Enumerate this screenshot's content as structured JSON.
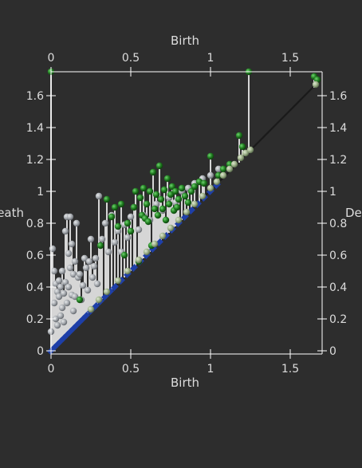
{
  "chart_data": {
    "type": "scatter",
    "title": "",
    "xlabel": "Birth",
    "ylabel": "Death",
    "xlim": [
      0,
      1.7
    ],
    "ylim": [
      -0.02,
      1.75
    ],
    "x_ticks": [
      0,
      0.5,
      1,
      1.5
    ],
    "x_tick_labels": [
      "0",
      "0.5",
      "1",
      "1.5"
    ],
    "y_ticks": [
      0,
      0.2,
      0.4,
      0.6,
      0.8,
      1,
      1.2,
      1.4,
      1.6
    ],
    "y_tick_labels": [
      "0",
      "0.2",
      "0.4",
      "0.6",
      "0.8",
      "1",
      "1.2",
      "1.4",
      "1.6"
    ],
    "grid": false,
    "legend": "none",
    "colors": {
      "background": "#2d2d2d",
      "axes": "#ffffff",
      "text": "#dcdcdc",
      "diagonal": "#1a1a1a",
      "stem": "#d6d6d6",
      "series_grey": "#a4a8ad",
      "series_green": "#1f7a1f",
      "series_light_green": "#9aae86",
      "series_blue": "#1e3fa8"
    },
    "series": [
      {
        "marker": "grey-sphere",
        "x": [
          0,
          0.01,
          0.02,
          0.02,
          0.03,
          0.03,
          0.04,
          0.04,
          0.05,
          0.05,
          0.06,
          0.06,
          0.07,
          0.07,
          0.08,
          0.08,
          0.09,
          0.09,
          0.1,
          0.1,
          0.11,
          0.11,
          0.12,
          0.12,
          0.13,
          0.13,
          0.14,
          0.14,
          0.15,
          0.15,
          0.16,
          0.17,
          0.18,
          0.19,
          0.2,
          0.21,
          0.22,
          0.23,
          0.24,
          0.25,
          0.26,
          0.27,
          0.28,
          0.29,
          0.3,
          0.32,
          0.34,
          0.36,
          0.38,
          0.4,
          0.42,
          0.44,
          0.46,
          0.48,
          0.5,
          0.52,
          0.55,
          0.58,
          0.62,
          0.66,
          0.7,
          0.74,
          0.78,
          0.82,
          0.86,
          0.9,
          0.95,
          1.0,
          1.05
        ],
        "y": [
          0.12,
          0.64,
          0.5,
          0.3,
          0.42,
          0.2,
          0.37,
          0.16,
          0.44,
          0.34,
          0.4,
          0.22,
          0.27,
          0.5,
          0.36,
          0.18,
          0.75,
          0.43,
          0.84,
          0.3,
          0.61,
          0.4,
          0.84,
          0.52,
          0.67,
          0.35,
          0.48,
          0.25,
          0.56,
          0.34,
          0.8,
          0.46,
          0.48,
          0.32,
          0.41,
          0.58,
          0.52,
          0.38,
          0.56,
          0.7,
          0.46,
          0.53,
          0.58,
          0.42,
          0.97,
          0.7,
          0.8,
          0.62,
          0.85,
          0.68,
          0.75,
          0.62,
          0.79,
          0.71,
          0.84,
          0.9,
          0.76,
          0.85,
          0.82,
          0.92,
          0.88,
          0.96,
          0.93,
          1.0,
          1.02,
          1.05,
          1.08,
          1.1,
          1.14
        ]
      },
      {
        "marker": "green-sphere",
        "x": [
          0.0,
          0.18,
          0.31,
          0.35,
          0.38,
          0.4,
          0.42,
          0.44,
          0.46,
          0.48,
          0.5,
          0.52,
          0.53,
          0.55,
          0.56,
          0.57,
          0.58,
          0.59,
          0.6,
          0.61,
          0.62,
          0.63,
          0.64,
          0.65,
          0.66,
          0.67,
          0.68,
          0.69,
          0.7,
          0.71,
          0.72,
          0.73,
          0.74,
          0.75,
          0.76,
          0.77,
          0.78,
          0.79,
          0.8,
          0.82,
          0.84,
          0.86,
          0.88,
          0.9,
          0.93,
          0.96,
          1.0,
          1.05,
          1.08,
          1.12,
          1.18,
          1.2,
          1.24,
          1.65,
          1.67
        ],
        "y": [
          1.75,
          0.32,
          0.66,
          0.95,
          0.84,
          0.9,
          0.78,
          0.92,
          0.6,
          0.8,
          0.75,
          0.9,
          1.0,
          0.56,
          0.96,
          0.85,
          1.02,
          0.83,
          0.92,
          0.81,
          1.0,
          0.66,
          1.12,
          0.89,
          0.98,
          0.85,
          1.16,
          0.95,
          0.89,
          1.01,
          0.82,
          1.08,
          0.92,
          0.98,
          1.03,
          0.88,
          1.0,
          0.9,
          0.95,
          1.02,
          0.97,
          0.93,
          1.0,
          1.03,
          1.06,
          1.05,
          1.22,
          1.1,
          1.14,
          1.17,
          1.35,
          1.28,
          1.75,
          1.72,
          1.7
        ]
      },
      {
        "marker": "light-green-sphere",
        "x": [
          0.25,
          0.3,
          0.35,
          0.42,
          0.48,
          0.55,
          0.6,
          0.65,
          0.7,
          0.75,
          0.8,
          0.85,
          0.9,
          0.95,
          1.0,
          1.04,
          1.08,
          1.12,
          1.15,
          1.19,
          1.22,
          1.25,
          1.66
        ],
        "y": [
          0.26,
          0.32,
          0.37,
          0.44,
          0.5,
          0.57,
          0.62,
          0.67,
          0.72,
          0.77,
          0.82,
          0.87,
          0.92,
          0.97,
          1.02,
          1.06,
          1.1,
          1.14,
          1.17,
          1.21,
          1.24,
          1.26,
          1.67
        ]
      }
    ],
    "diagonal_points_blue": {
      "x": [
        0.0,
        0.02,
        0.04,
        0.06,
        0.08,
        0.1,
        0.12,
        0.14,
        0.16,
        0.18,
        0.2,
        0.22,
        0.25,
        0.28,
        0.31,
        0.34,
        0.37,
        0.4,
        0.44,
        0.48,
        0.52,
        0.56,
        0.6,
        0.64,
        0.68,
        0.72,
        0.76,
        0.8,
        0.84,
        0.88,
        0.92,
        0.96,
        1.0,
        1.04
      ],
      "y": [
        0.0,
        0.02,
        0.04,
        0.06,
        0.08,
        0.1,
        0.12,
        0.14,
        0.16,
        0.18,
        0.2,
        0.22,
        0.25,
        0.28,
        0.31,
        0.34,
        0.37,
        0.4,
        0.44,
        0.48,
        0.52,
        0.56,
        0.6,
        0.64,
        0.68,
        0.72,
        0.76,
        0.8,
        0.84,
        0.88,
        0.92,
        0.96,
        1.0,
        1.04
      ]
    }
  }
}
